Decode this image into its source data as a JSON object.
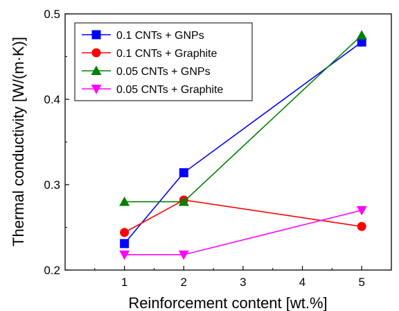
{
  "chart_data": {
    "type": "line",
    "xlabel": "Reinforcement content [wt.%]",
    "ylabel": "Thermal conductivity [W/(m·K)]",
    "xlim": [
      0,
      5.5
    ],
    "ylim": [
      0.2,
      0.5
    ],
    "x_ticks": [
      {
        "value": 1,
        "label": "1"
      },
      {
        "value": 2,
        "label": "2"
      },
      {
        "value": 3,
        "label": "3"
      },
      {
        "value": 4,
        "label": "4"
      },
      {
        "value": 5,
        "label": "5"
      }
    ],
    "y_ticks": [
      {
        "value": 0.2,
        "label": "0.2"
      },
      {
        "value": 0.3,
        "label": "0.3"
      },
      {
        "value": 0.4,
        "label": "0.4"
      },
      {
        "value": 0.5,
        "label": "0.5"
      }
    ],
    "legend_position": "top-left",
    "grid": false,
    "series": [
      {
        "name": "0.1 CNTs + GNPs",
        "color": "#0000ff",
        "marker": "square",
        "x": [
          1,
          2,
          5
        ],
        "y": [
          0.231,
          0.314,
          0.467
        ]
      },
      {
        "name": "0.1 CNTs + Graphite",
        "color": "#ff0000",
        "marker": "circle",
        "x": [
          1,
          2,
          5
        ],
        "y": [
          0.244,
          0.282,
          0.251
        ]
      },
      {
        "name": "0.05 CNTs + GNPs",
        "color": "#008000",
        "marker": "triangle-up",
        "x": [
          1,
          2,
          5
        ],
        "y": [
          0.28,
          0.28,
          0.475
        ]
      },
      {
        "name": "0.05 CNTs + Graphite",
        "color": "#ff00ff",
        "marker": "triangle-down",
        "x": [
          1,
          2,
          5
        ],
        "y": [
          0.218,
          0.218,
          0.27
        ]
      }
    ]
  }
}
